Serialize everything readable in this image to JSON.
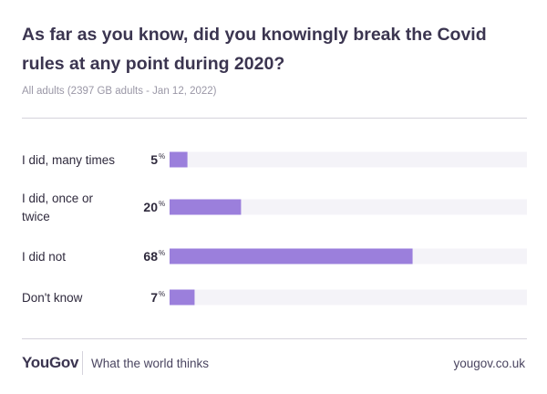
{
  "header": {
    "title": "As far as you know, did you knowingly break the Covid rules at any point during 2020?",
    "subtitle": "All adults (2397 GB adults - Jan 12, 2022)"
  },
  "chart_data": {
    "type": "bar",
    "orientation": "horizontal",
    "categories": [
      "I did, many times",
      "I did, once or twice",
      "I did not",
      "Don't know"
    ],
    "category_lines": [
      [
        "I did, many times"
      ],
      [
        "I did, once or",
        "twice"
      ],
      [
        "I did not"
      ],
      [
        "Don't know"
      ]
    ],
    "values": [
      5,
      20,
      68,
      7
    ],
    "value_labels": [
      "5",
      "20",
      "68",
      "7"
    ],
    "unit": "%",
    "xlim": [
      0,
      100
    ],
    "bar_color": "#9b7fdc",
    "track_color": "#f4f3f8"
  },
  "footer": {
    "logo": "YouGov",
    "tagline": "What the world thinks",
    "url": "yougov.co.uk"
  }
}
